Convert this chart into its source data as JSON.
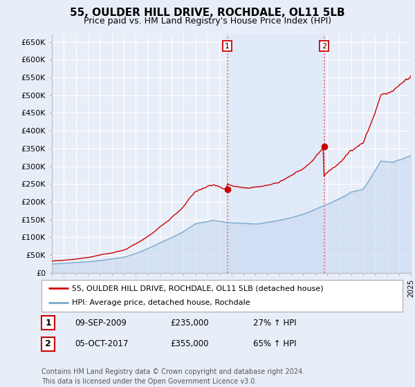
{
  "title": "55, OULDER HILL DRIVE, ROCHDALE, OL11 5LB",
  "subtitle": "Price paid vs. HM Land Registry's House Price Index (HPI)",
  "yticks": [
    0,
    50000,
    100000,
    150000,
    200000,
    250000,
    300000,
    350000,
    400000,
    450000,
    500000,
    550000,
    600000,
    650000
  ],
  "ytick_labels": [
    "£0",
    "£50K",
    "£100K",
    "£150K",
    "£200K",
    "£250K",
    "£300K",
    "£350K",
    "£400K",
    "£450K",
    "£500K",
    "£550K",
    "£600K",
    "£650K"
  ],
  "background_color": "#e8eef8",
  "grid_color": "#ffffff",
  "red_line_color": "#cc0000",
  "blue_line_color": "#7aaacc",
  "blue_fill_color": "#c8d8f0",
  "shade_color": "#dce8f8",
  "vline_color": "#ee6666",
  "legend_label1": "55, OULDER HILL DRIVE, ROCHDALE, OL11 5LB (detached house)",
  "legend_label2": "HPI: Average price, detached house, Rochdale",
  "table_row1": [
    "1",
    "09-SEP-2009",
    "£235,000",
    "27% ↑ HPI"
  ],
  "table_row2": [
    "2",
    "05-OCT-2017",
    "£355,000",
    "65% ↑ HPI"
  ],
  "footnote": "Contains HM Land Registry data © Crown copyright and database right 2024.\nThis data is licensed under the Open Government Licence v3.0.",
  "annotation_box_color": "#cc0000",
  "year_start": 1995,
  "year_end": 2025,
  "purchase1_year": 2009,
  "purchase1_month": 9,
  "purchase1_price": 235000,
  "purchase2_year": 2017,
  "purchase2_month": 10,
  "purchase2_price": 355000
}
